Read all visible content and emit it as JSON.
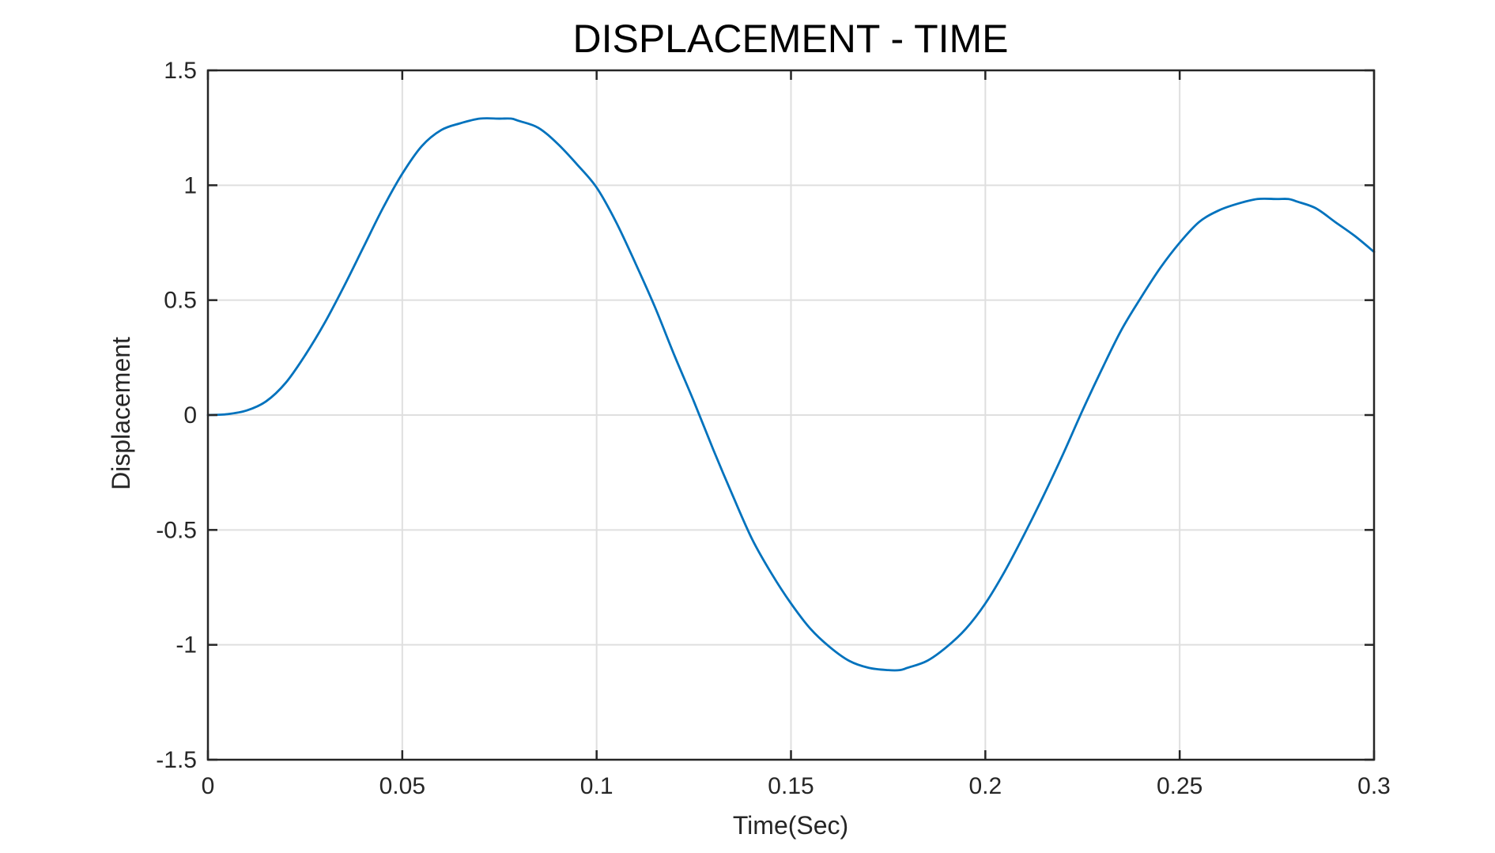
{
  "chart_data": {
    "type": "line",
    "title": "DISPLACEMENT - TIME",
    "xlabel": "Time(Sec)",
    "ylabel": "Displacement",
    "xlim": [
      0,
      0.3
    ],
    "ylim": [
      -1.5,
      1.5
    ],
    "grid": true,
    "x_ticks": [
      0,
      0.05,
      0.1,
      0.15,
      0.2,
      0.25,
      0.3
    ],
    "x_tick_labels": [
      "0",
      "0.05",
      "0.1",
      "0.15",
      "0.2",
      "0.25",
      "0.3"
    ],
    "y_ticks": [
      -1.5,
      -1,
      -0.5,
      0,
      0.5,
      1,
      1.5
    ],
    "y_tick_labels": [
      "-1.5",
      "-1",
      "-0.5",
      "0",
      "0.5",
      "1",
      "1.5"
    ],
    "series": [
      {
        "color": "#0072bd",
        "x": [
          0,
          0.005,
          0.01,
          0.015,
          0.02,
          0.025,
          0.03,
          0.035,
          0.04,
          0.045,
          0.05,
          0.055,
          0.06,
          0.065,
          0.07,
          0.075,
          0.078,
          0.08,
          0.085,
          0.09,
          0.095,
          0.1,
          0.105,
          0.11,
          0.115,
          0.12,
          0.125,
          0.13,
          0.135,
          0.14,
          0.145,
          0.15,
          0.155,
          0.16,
          0.165,
          0.17,
          0.175,
          0.178,
          0.18,
          0.185,
          0.19,
          0.195,
          0.2,
          0.205,
          0.21,
          0.215,
          0.22,
          0.225,
          0.23,
          0.235,
          0.24,
          0.245,
          0.25,
          0.255,
          0.26,
          0.265,
          0.27,
          0.275,
          0.278,
          0.28,
          0.285,
          0.29,
          0.295,
          0.3
        ],
        "y": [
          0,
          0.004,
          0.02,
          0.06,
          0.14,
          0.26,
          0.4,
          0.56,
          0.73,
          0.9,
          1.05,
          1.17,
          1.24,
          1.27,
          1.29,
          1.29,
          1.29,
          1.28,
          1.25,
          1.18,
          1.09,
          0.99,
          0.84,
          0.66,
          0.47,
          0.26,
          0.06,
          -0.15,
          -0.35,
          -0.54,
          -0.69,
          -0.82,
          -0.93,
          -1.01,
          -1.07,
          -1.1,
          -1.11,
          -1.11,
          -1.1,
          -1.07,
          -1.01,
          -0.93,
          -0.82,
          -0.68,
          -0.52,
          -0.35,
          -0.17,
          0.02,
          0.2,
          0.37,
          0.51,
          0.64,
          0.75,
          0.84,
          0.89,
          0.92,
          0.94,
          0.94,
          0.94,
          0.93,
          0.9,
          0.84,
          0.78,
          0.71
        ]
      }
    ]
  }
}
